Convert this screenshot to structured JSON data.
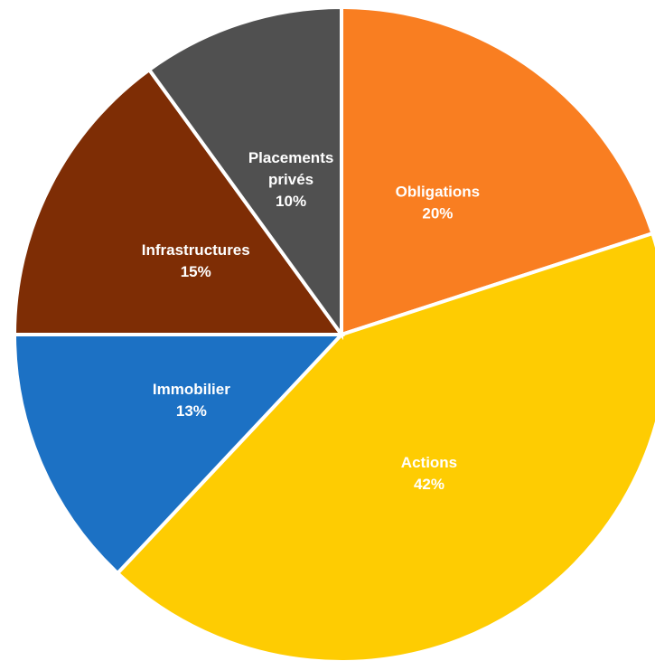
{
  "chart_data": {
    "type": "pie",
    "start_angle_deg": 0,
    "direction": "clockwise",
    "slices": [
      {
        "lines": [
          "Obligations",
          "20%"
        ],
        "value": 20,
        "color": "#F97E21"
      },
      {
        "lines": [
          "Actions",
          "42%"
        ],
        "value": 42,
        "color": "#FECC02"
      },
      {
        "lines": [
          "Immobilier",
          "13%"
        ],
        "value": 13,
        "color": "#1C71C4"
      },
      {
        "lines": [
          "Infrastructures",
          "15%"
        ],
        "value": 15,
        "color": "#7E2D05"
      },
      {
        "lines": [
          "Placements",
          "privés",
          "10%"
        ],
        "value": 10,
        "color": "#505050"
      }
    ],
    "legend": "none",
    "data_labels": "inside"
  }
}
